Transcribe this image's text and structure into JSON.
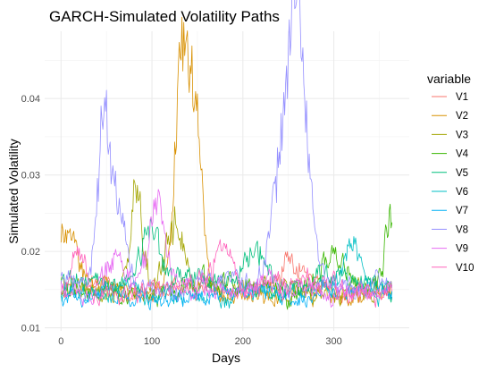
{
  "chart_data": {
    "type": "line",
    "title": "GARCH-Simulated Volatility Paths",
    "xlabel": "Days",
    "ylabel": "Simulated Volatility",
    "xlim": [
      -18,
      383
    ],
    "ylim": [
      0.0096,
      0.0488
    ],
    "x_ticks": [
      0,
      100,
      200,
      300
    ],
    "y_ticks": [
      0.01,
      0.02,
      0.03,
      0.04
    ],
    "x_tick_labels": [
      "0",
      "100",
      "200",
      "300"
    ],
    "y_tick_labels": [
      "0.01",
      "0.02",
      "0.03",
      "0.04"
    ],
    "grid": true,
    "legend": {
      "title": "variable",
      "placement": "right"
    },
    "n_days": 365,
    "series": [
      {
        "name": "V1",
        "color": "#F8766D",
        "base": 0.015,
        "amp": 0.0016,
        "seed": 11,
        "spikes": [
          [
            260,
            0.0045,
            14
          ]
        ]
      },
      {
        "name": "V2",
        "color": "#D89000",
        "base": 0.0148,
        "amp": 0.0015,
        "seed": 23,
        "spikes": [
          [
            8,
            0.0075,
            10
          ],
          [
            132,
            0.0205,
            7
          ],
          [
            143,
            0.017,
            10
          ],
          [
            150,
            0.01,
            6
          ]
        ]
      },
      {
        "name": "V3",
        "color": "#A3A500",
        "base": 0.0152,
        "amp": 0.0016,
        "seed": 37,
        "spikes": [
          [
            83,
            0.012,
            7
          ],
          [
            125,
            0.008,
            10
          ]
        ]
      },
      {
        "name": "V4",
        "color": "#39B600",
        "base": 0.0153,
        "amp": 0.0017,
        "seed": 41,
        "spikes": [
          [
            362,
            0.0085,
            6
          ],
          [
            300,
            0.0045,
            12
          ]
        ]
      },
      {
        "name": "V5",
        "color": "#00BF7D",
        "base": 0.0155,
        "amp": 0.0016,
        "seed": 53,
        "spikes": [
          [
            98,
            0.0065,
            10
          ],
          [
            210,
            0.005,
            12
          ]
        ]
      },
      {
        "name": "V6",
        "color": "#00BFC4",
        "base": 0.0145,
        "amp": 0.0016,
        "seed": 67,
        "spikes": [
          [
            320,
            0.006,
            10
          ]
        ]
      },
      {
        "name": "V7",
        "color": "#00B0F6",
        "base": 0.0142,
        "amp": 0.0013,
        "seed": 71,
        "spikes": []
      },
      {
        "name": "V8",
        "color": "#9590FF",
        "base": 0.0155,
        "amp": 0.0016,
        "seed": 83,
        "spikes": [
          [
            47,
            0.0185,
            8
          ],
          [
            62,
            0.009,
            10
          ],
          [
            245,
            0.018,
            12
          ],
          [
            258,
            0.03,
            6
          ],
          [
            270,
            0.013,
            8
          ]
        ]
      },
      {
        "name": "V9",
        "color": "#E76BF3",
        "base": 0.015,
        "amp": 0.0016,
        "seed": 97,
        "spikes": [
          [
            105,
            0.01,
            9
          ],
          [
            60,
            0.005,
            10
          ]
        ]
      },
      {
        "name": "V10",
        "color": "#FF62BC",
        "base": 0.0152,
        "amp": 0.0016,
        "seed": 101,
        "spikes": [
          [
            20,
            0.006,
            8
          ],
          [
            180,
            0.0045,
            12
          ]
        ]
      }
    ]
  }
}
